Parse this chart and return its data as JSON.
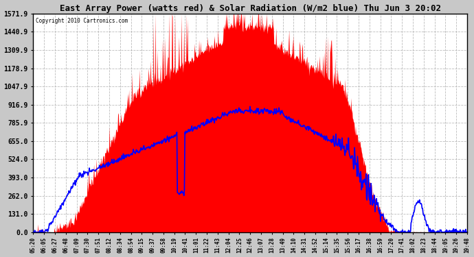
{
  "title": "East Array Power (watts red) & Solar Radiation (W/m2 blue) Thu Jun 3 20:02",
  "copyright_text": "Copyright 2010 Cartronics.com",
  "yticks": [
    0.0,
    131.0,
    262.0,
    393.0,
    524.0,
    655.0,
    785.9,
    916.9,
    1047.9,
    1178.9,
    1309.9,
    1440.9,
    1571.9
  ],
  "ymax": 1571.9,
  "ymin": 0.0,
  "bg_color": "#c8c8c8",
  "plot_bg_color": "#ffffff",
  "fill_color": "#ff0000",
  "line_color": "#0000ff",
  "title_fontsize": 9,
  "x_labels": [
    "05:20",
    "06:05",
    "06:27",
    "06:48",
    "07:09",
    "07:30",
    "07:51",
    "08:12",
    "08:34",
    "08:54",
    "09:15",
    "09:37",
    "09:58",
    "10:19",
    "10:41",
    "11:01",
    "11:22",
    "11:43",
    "12:04",
    "12:25",
    "12:46",
    "13:07",
    "13:28",
    "13:49",
    "14:10",
    "14:31",
    "14:52",
    "15:14",
    "15:35",
    "15:56",
    "16:17",
    "16:38",
    "16:59",
    "17:20",
    "17:41",
    "18:02",
    "18:23",
    "18:44",
    "19:05",
    "19:26",
    "19:48"
  ]
}
